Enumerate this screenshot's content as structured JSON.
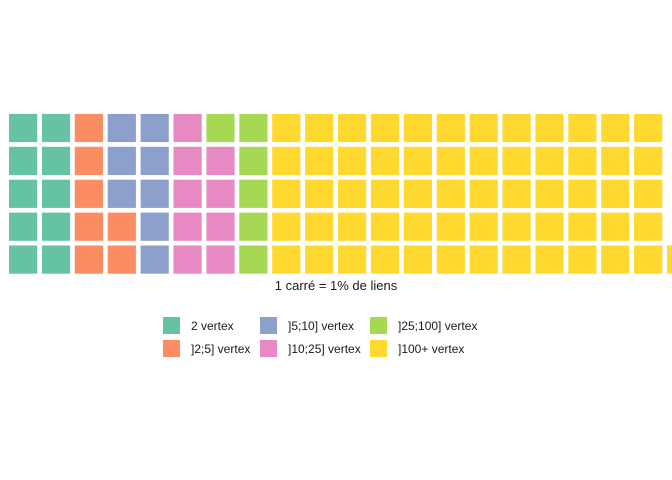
{
  "chart_data": {
    "type": "waffle",
    "caption": "1 carré = 1% de liens",
    "rows": 5,
    "unit": "1%",
    "categories": [
      {
        "name": "2 vertex",
        "squares": 10,
        "color": "#66C2A5"
      },
      {
        "name": "]2;5] vertex",
        "squares": 7,
        "color": "#FC8D62"
      },
      {
        "name": "]5;10] vertex",
        "squares": 8,
        "color": "#8DA0CB"
      },
      {
        "name": "]10;25] vertex",
        "squares": 9,
        "color": "#E78AC3"
      },
      {
        "name": "]25;100] vertex",
        "squares": 6,
        "color": "#A6D854"
      },
      {
        "name": "]100+ vertex",
        "squares": 61,
        "color": "#FFD92F"
      }
    ],
    "legend_position": "bottom",
    "legend_order": [
      0,
      2,
      4,
      1,
      3,
      5
    ]
  }
}
